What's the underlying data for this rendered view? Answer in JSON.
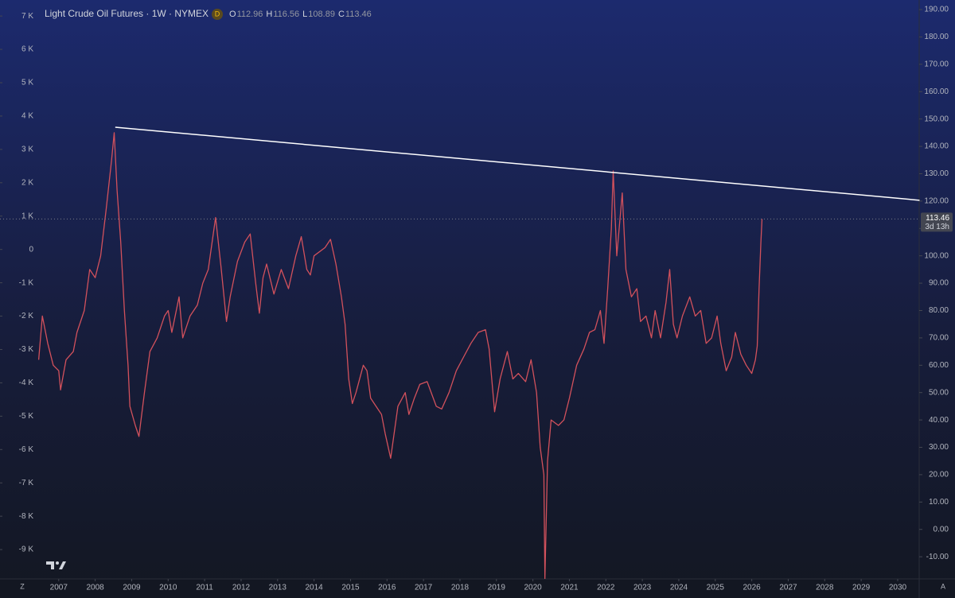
{
  "chart_data": {
    "type": "line",
    "title": "Light Crude Oil Futures · 1W · NYMEX",
    "badge": "D",
    "ohlc": [
      {
        "label": "O",
        "value": 112.96
      },
      {
        "label": "H",
        "value": 116.56
      },
      {
        "label": "L",
        "value": 108.89
      },
      {
        "label": "C",
        "value": 113.46
      }
    ],
    "x": [
      2006.45,
      2006.55,
      2006.7,
      2006.85,
      2007.0,
      2007.05,
      2007.2,
      2007.4,
      2007.5,
      2007.7,
      2007.85,
      2008.0,
      2008.15,
      2008.3,
      2008.45,
      2008.52,
      2008.6,
      2008.7,
      2008.8,
      2008.9,
      2008.95,
      2009.1,
      2009.2,
      2009.35,
      2009.5,
      2009.7,
      2009.9,
      2010.0,
      2010.1,
      2010.3,
      2010.4,
      2010.6,
      2010.8,
      2010.95,
      2011.1,
      2011.3,
      2011.45,
      2011.6,
      2011.7,
      2011.9,
      2012.1,
      2012.25,
      2012.4,
      2012.5,
      2012.6,
      2012.7,
      2012.9,
      2013.1,
      2013.3,
      2013.5,
      2013.65,
      2013.8,
      2013.9,
      2014.0,
      2014.3,
      2014.45,
      2014.6,
      2014.75,
      2014.85,
      2014.95,
      2015.05,
      2015.15,
      2015.35,
      2015.45,
      2015.55,
      2015.7,
      2015.85,
      2015.95,
      2016.1,
      2016.3,
      2016.5,
      2016.6,
      2016.75,
      2016.9,
      2017.1,
      2017.35,
      2017.5,
      2017.7,
      2017.9,
      2018.1,
      2018.3,
      2018.5,
      2018.7,
      2018.8,
      2018.95,
      2019.1,
      2019.3,
      2019.45,
      2019.6,
      2019.8,
      2019.95,
      2020.1,
      2020.2,
      2020.3,
      2020.33,
      2020.4,
      2020.5,
      2020.7,
      2020.85,
      2021.0,
      2021.2,
      2021.4,
      2021.55,
      2021.7,
      2021.85,
      2021.95,
      2022.05,
      2022.15,
      2022.2,
      2022.3,
      2022.45,
      2022.55,
      2022.7,
      2022.85,
      2022.95,
      2023.1,
      2023.25,
      2023.35,
      2023.5,
      2023.65,
      2023.75,
      2023.85,
      2023.95,
      2024.1,
      2024.3,
      2024.45,
      2024.6,
      2024.75,
      2024.9,
      2025.05,
      2025.15,
      2025.3,
      2025.45,
      2025.55,
      2025.7,
      2025.85,
      2026.0,
      2026.1,
      2026.15,
      2026.2,
      2026.25,
      2026.28
    ],
    "series": [
      {
        "color": "#d2515c",
        "values": [
          62,
          78,
          68,
          60,
          58,
          51,
          62,
          65,
          72,
          80,
          95,
          92,
          100,
          117,
          135,
          145,
          124,
          105,
          80,
          60,
          45,
          38,
          34,
          50,
          65,
          70,
          78,
          80,
          72,
          85,
          70,
          78,
          82,
          90,
          95,
          114,
          96,
          76,
          85,
          98,
          105,
          108,
          90,
          79,
          92,
          97,
          86,
          95,
          88,
          100,
          107,
          95,
          93,
          100,
          103,
          106,
          97,
          85,
          75,
          55,
          46,
          50,
          60,
          58,
          48,
          45,
          42,
          35,
          26,
          45,
          50,
          42,
          48,
          53,
          54,
          45,
          44,
          50,
          58,
          63,
          68,
          72,
          73,
          66,
          43,
          55,
          65,
          55,
          57,
          54,
          62,
          50,
          30,
          20,
          -18,
          25,
          40,
          38,
          40,
          48,
          60,
          66,
          72,
          73,
          80,
          68,
          88,
          110,
          131,
          100,
          123,
          95,
          85,
          88,
          76,
          78,
          70,
          80,
          70,
          83,
          95,
          75,
          70,
          78,
          85,
          78,
          80,
          68,
          70,
          78,
          68,
          58,
          63,
          72,
          64,
          60,
          57,
          62,
          67,
          88,
          105,
          113.46
        ]
      }
    ],
    "trendline": {
      "color": "#ffffff",
      "x": [
        2008.55,
        2030.6
      ],
      "y": [
        147,
        120.3
      ]
    },
    "last_price": {
      "value": 113.46,
      "countdown": "3d 13h"
    },
    "xlim": [
      2005.39,
      2030.59
    ],
    "xticks": [
      2007,
      2008,
      2009,
      2010,
      2011,
      2012,
      2013,
      2014,
      2015,
      2016,
      2017,
      2018,
      2019,
      2020,
      2021,
      2022,
      2023,
      2024,
      2025,
      2026,
      2027,
      2028,
      2029,
      2030
    ],
    "ylim": [
      -18.1,
      193.5
    ],
    "yticks": [
      {
        "value": 190,
        "label": "190.00"
      },
      {
        "value": 180,
        "label": "180.00"
      },
      {
        "value": 170,
        "label": "170.00"
      },
      {
        "value": 160,
        "label": "160.00"
      },
      {
        "value": 150,
        "label": "150.00"
      },
      {
        "value": 140,
        "label": "140.00"
      },
      {
        "value": 130,
        "label": "130.00"
      },
      {
        "value": 120,
        "label": "120.00"
      },
      {
        "value": 110,
        "label": "110.00"
      },
      {
        "value": 100,
        "label": "100.00"
      },
      {
        "value": 90,
        "label": "90.00"
      },
      {
        "value": 80,
        "label": "80.00"
      },
      {
        "value": 70,
        "label": "70.00"
      },
      {
        "value": 60,
        "label": "60.00"
      },
      {
        "value": 50,
        "label": "50.00"
      },
      {
        "value": 40,
        "label": "40.00"
      },
      {
        "value": 30,
        "label": "30.00"
      },
      {
        "value": 20,
        "label": "20.00"
      },
      {
        "value": 10,
        "label": "10.00"
      },
      {
        "value": 0,
        "label": "0.00"
      },
      {
        "value": -10,
        "label": "-10.00"
      }
    ],
    "y2lim": [
      -9880,
      7480
    ],
    "y2ticks": [
      {
        "value": 7000,
        "label": "7 K"
      },
      {
        "value": 6000,
        "label": "6 K"
      },
      {
        "value": 5000,
        "label": "5 K"
      },
      {
        "value": 4000,
        "label": "4 K"
      },
      {
        "value": 3000,
        "label": "3 K"
      },
      {
        "value": 2000,
        "label": "2 K"
      },
      {
        "value": 1000,
        "label": "1 K"
      },
      0,
      {
        "value": -1000,
        "label": "-1 K"
      },
      {
        "value": -2000,
        "label": "-2 K"
      },
      {
        "value": -3000,
        "label": "-3 K"
      },
      {
        "value": -4000,
        "label": "-4 K"
      },
      {
        "value": -5000,
        "label": "-5 K"
      },
      {
        "value": -6000,
        "label": "-6 K"
      },
      {
        "value": -7000,
        "label": "-7 K"
      },
      {
        "value": -8000,
        "label": "-8 K"
      },
      {
        "value": -9000,
        "label": "-9 K"
      }
    ],
    "footer": {
      "left": "Z",
      "right": "A"
    }
  }
}
